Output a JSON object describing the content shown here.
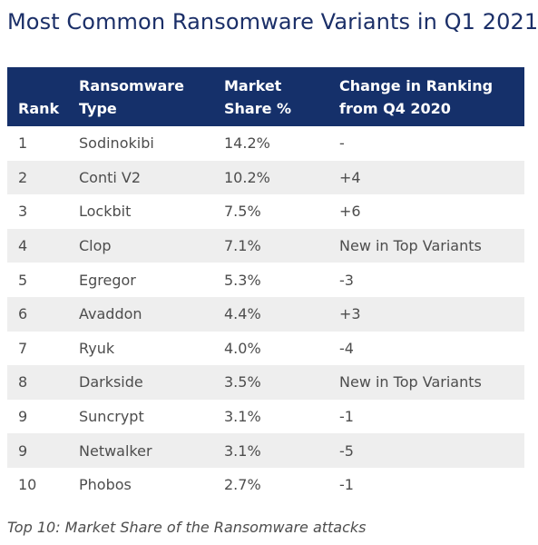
{
  "title": "Most Common Ransomware Variants in Q1 2021",
  "table": {
    "headers": {
      "rank": "Rank",
      "type_line1": "Ransomware",
      "type_line2": "Type",
      "share_line1": "Market",
      "share_line2": "Share %",
      "change_line1": "Change in Ranking",
      "change_line2": "from Q4 2020"
    },
    "rows": [
      {
        "rank": "1",
        "type": "Sodinokibi",
        "share": "14.2%",
        "change": "-"
      },
      {
        "rank": "2",
        "type": "Conti V2",
        "share": "10.2%",
        "change": "+4"
      },
      {
        "rank": "3",
        "type": "Lockbit",
        "share": "7.5%",
        "change": "+6"
      },
      {
        "rank": "4",
        "type": "Clop",
        "share": "7.1%",
        "change": "New in Top Variants"
      },
      {
        "rank": "5",
        "type": "Egregor",
        "share": "5.3%",
        "change": "-3"
      },
      {
        "rank": "6",
        "type": "Avaddon",
        "share": "4.4%",
        "change": "+3"
      },
      {
        "rank": "7",
        "type": "Ryuk",
        "share": "4.0%",
        "change": "-4"
      },
      {
        "rank": "8",
        "type": "Darkside",
        "share": "3.5%",
        "change": "New in Top Variants"
      },
      {
        "rank": "9",
        "type": "Suncrypt",
        "share": "3.1%",
        "change": "-1"
      },
      {
        "rank": "9",
        "type": "Netwalker",
        "share": "3.1%",
        "change": "-5"
      },
      {
        "rank": "10",
        "type": "Phobos",
        "share": "2.7%",
        "change": "-1"
      }
    ]
  },
  "caption": "Top 10: Market Share of the Ransomware attacks",
  "colors": {
    "header_bg": "#15306a",
    "title": "#1b2f68",
    "stripe": "#eeeeee"
  }
}
